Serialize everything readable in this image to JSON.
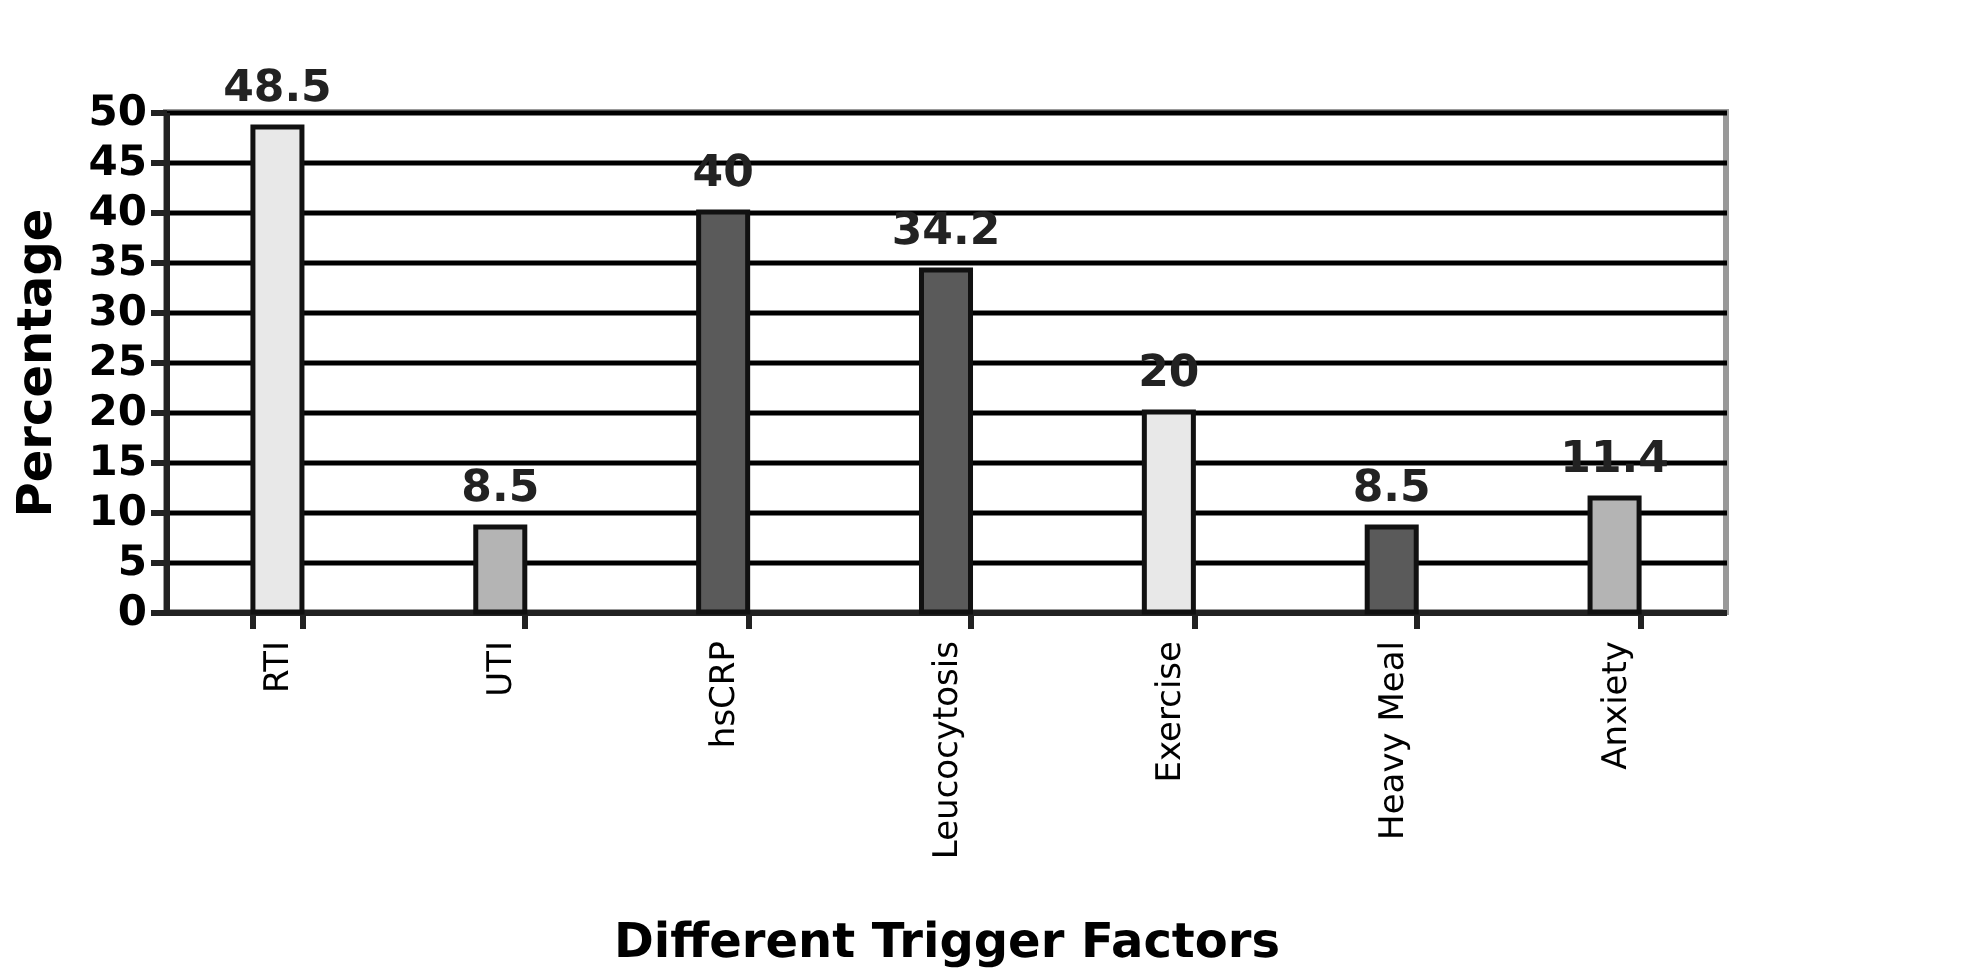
{
  "chart_data": {
    "type": "bar",
    "xlabel": "Different Trigger Factors",
    "ylabel": "Percentage",
    "categories": [
      "RTI",
      "UTI",
      "hsCRP",
      "Leucocytosis",
      "Exercise",
      "Heavy Meal",
      "Anxiety"
    ],
    "values": [
      48.5,
      8.5,
      40,
      34.2,
      20,
      8.5,
      11.4
    ],
    "colors": [
      "#e8e8e8",
      "#b4b4b4",
      "#5a5a5a",
      "#5a5a5a",
      "#e8e8e8",
      "#5a5a5a",
      "#b4b4b4"
    ],
    "ylim": [
      0,
      50
    ],
    "yticks": [
      0,
      5,
      10,
      15,
      20,
      25,
      30,
      35,
      40,
      45,
      50
    ],
    "grid": "y",
    "data_labels": true
  }
}
